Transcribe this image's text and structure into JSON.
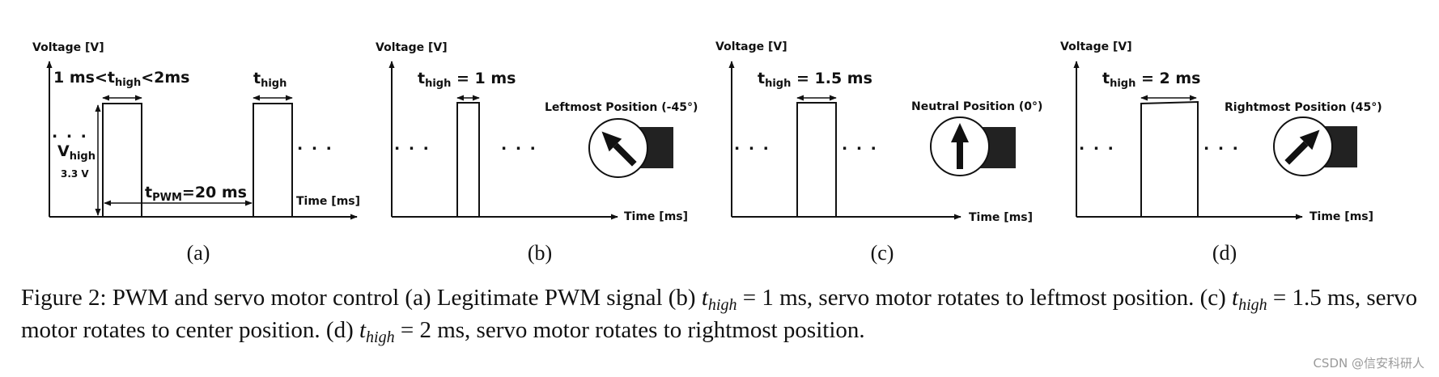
{
  "panels": [
    {
      "id": "a",
      "ylabel": "Voltage [V]",
      "xlabel": "Time [ms]",
      "sublabel": "(a)",
      "range_label": {
        "pre": "1 ms<t",
        "sub": "high",
        "post": "<2ms"
      },
      "thigh_label": {
        "pre": "t",
        "sub": "high"
      },
      "vhigh_label": {
        "pre": "V",
        "sub": "high"
      },
      "vhigh_value": "3.3 V",
      "period_label": {
        "pre": "t",
        "sub": "PWM",
        "post": "=20 ms"
      }
    },
    {
      "id": "b",
      "ylabel": "Voltage [V]",
      "xlabel": "Time [ms]",
      "sublabel": "(b)",
      "thigh_label": {
        "pre": "t",
        "sub": "high",
        "post": " = 1 ms"
      },
      "position_label": "Leftmost Position (-45°)",
      "servo_angle_deg": -45
    },
    {
      "id": "c",
      "ylabel": "Voltage [V]",
      "xlabel": "Time [ms]",
      "sublabel": "(c)",
      "thigh_label": {
        "pre": "t",
        "sub": "high",
        "post": " = 1.5 ms"
      },
      "position_label": "Neutral Position (0°)",
      "servo_angle_deg": 0
    },
    {
      "id": "d",
      "ylabel": "Voltage [V]",
      "xlabel": "Time [ms]",
      "sublabel": "(d)",
      "thigh_label": {
        "pre": "t",
        "sub": "high",
        "post": " = 2 ms"
      },
      "position_label": "Rightmost Position (45°)",
      "servo_angle_deg": 45
    }
  ],
  "dots": ". . .",
  "caption": {
    "p1": "Figure 2: PWM and servo motor control (a) Legitimate PWM signal (b) ",
    "t1": "t",
    "s1": "high",
    "p2": " = 1 ms, servo motor rotates to leftmost position. (c) ",
    "t2": "t",
    "s2": "high",
    "p3": " = 1.5 ms, servo motor rotates to center position. (d) ",
    "t3": "t",
    "s3": "high",
    "p4": " = 2 ms, servo motor rotates to rightmost position."
  },
  "watermark": "CSDN @信安科研人"
}
